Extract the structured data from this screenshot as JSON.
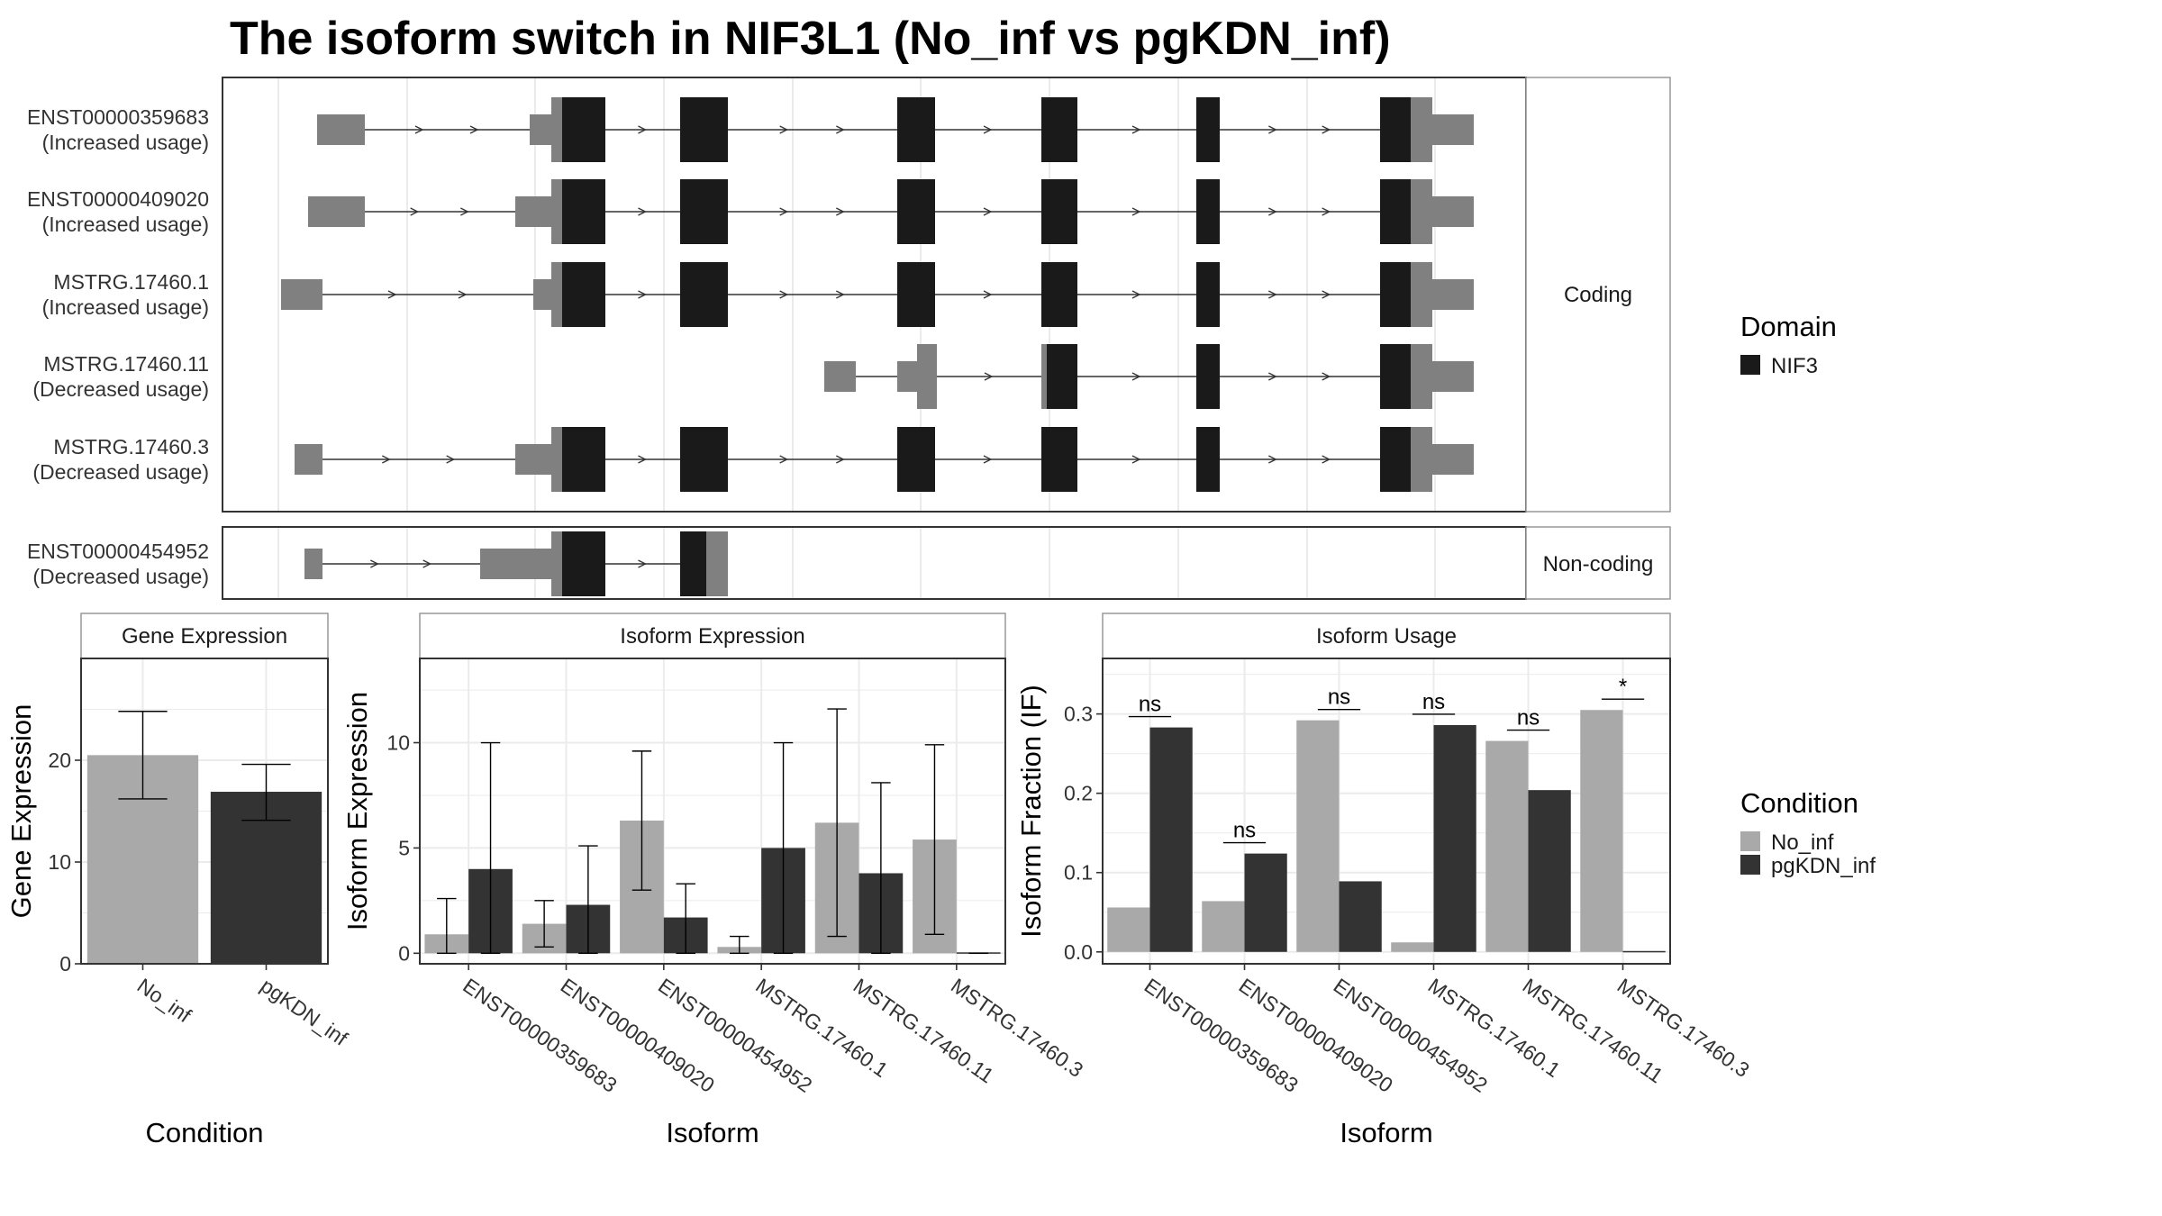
{
  "title": "The isoform switch in NIF3L1 (No_inf vs pgKDN_inf)",
  "structure": {
    "groups": [
      {
        "label": "Coding",
        "isoforms": [
          {
            "id": "ENST00000359683",
            "usage": "(Increased usage)"
          },
          {
            "id": "ENST00000409020",
            "usage": "(Increased usage)"
          },
          {
            "id": "MSTRG.17460.1",
            "usage": "(Increased usage)"
          },
          {
            "id": "MSTRG.17460.11",
            "usage": "(Decreased usage)"
          },
          {
            "id": "MSTRG.17460.3",
            "usage": "(Decreased usage)"
          }
        ]
      },
      {
        "label": "Non-coding",
        "isoforms": [
          {
            "id": "ENST00000454952",
            "usage": "(Decreased usage)"
          }
        ]
      }
    ],
    "legend": {
      "title": "Domain",
      "items": [
        {
          "label": "NIF3",
          "color": "#1a1a1a"
        }
      ]
    }
  },
  "chart_data": [
    {
      "type": "bar",
      "title": "Gene Expression",
      "xlabel": "Condition",
      "ylabel": "Gene Expression",
      "categories": [
        "No_inf",
        "pgKDN_inf"
      ],
      "values": [
        20.5,
        16.9
      ],
      "error_low": [
        16.2,
        14.1
      ],
      "error_high": [
        24.8,
        19.6
      ],
      "ylim": [
        0,
        30
      ],
      "yticks": [
        0,
        10,
        20
      ]
    },
    {
      "type": "bar",
      "title": "Isoform Expression",
      "xlabel": "Isoform",
      "ylabel": "Isoform Expression",
      "categories": [
        "ENST00000359683",
        "ENST00000409020",
        "ENST00000454952",
        "MSTRG.17460.1",
        "MSTRG.17460.11",
        "MSTRG.17460.3"
      ],
      "series": [
        {
          "name": "No_inf",
          "values": [
            0.9,
            1.4,
            6.3,
            0.3,
            6.2,
            5.4
          ],
          "error_low": [
            0.0,
            0.3,
            3.0,
            0.0,
            0.8,
            0.9
          ],
          "error_high": [
            2.6,
            2.5,
            9.6,
            0.8,
            11.6,
            9.9
          ]
        },
        {
          "name": "pgKDN_inf",
          "values": [
            4.0,
            2.3,
            1.7,
            5.0,
            3.8,
            0.0
          ],
          "error_low": [
            0.0,
            0.0,
            0.0,
            0.0,
            0.0,
            0.0
          ],
          "error_high": [
            10.0,
            5.1,
            3.3,
            10.0,
            8.1,
            0.0
          ]
        }
      ],
      "ylim": [
        -0.5,
        14
      ],
      "yticks": [
        0,
        5,
        10
      ]
    },
    {
      "type": "bar",
      "title": "Isoform Usage",
      "xlabel": "Isoform",
      "ylabel": "Isoform Fraction (IF)",
      "categories": [
        "ENST00000359683",
        "ENST00000409020",
        "ENST00000454952",
        "MSTRG.17460.1",
        "MSTRG.17460.11",
        "MSTRG.17460.3"
      ],
      "series": [
        {
          "name": "No_inf",
          "values": [
            0.056,
            0.064,
            0.292,
            0.012,
            0.266,
            0.305
          ]
        },
        {
          "name": "pgKDN_inf",
          "values": [
            0.283,
            0.124,
            0.089,
            0.286,
            0.204,
            0.0
          ]
        }
      ],
      "significance": [
        "ns",
        "ns",
        "ns",
        "ns",
        "ns",
        "*"
      ],
      "ylim": [
        -0.015,
        0.37
      ],
      "yticks": [
        0.0,
        0.1,
        0.2,
        0.3
      ],
      "ytick_labels": [
        "0.0",
        "0.1",
        "0.2",
        "0.3"
      ]
    }
  ],
  "condition_legend": {
    "title": "Condition",
    "items": [
      {
        "label": "No_inf",
        "color": "#a9a9a9"
      },
      {
        "label": "pgKDN_inf",
        "color": "#333333"
      }
    ]
  }
}
